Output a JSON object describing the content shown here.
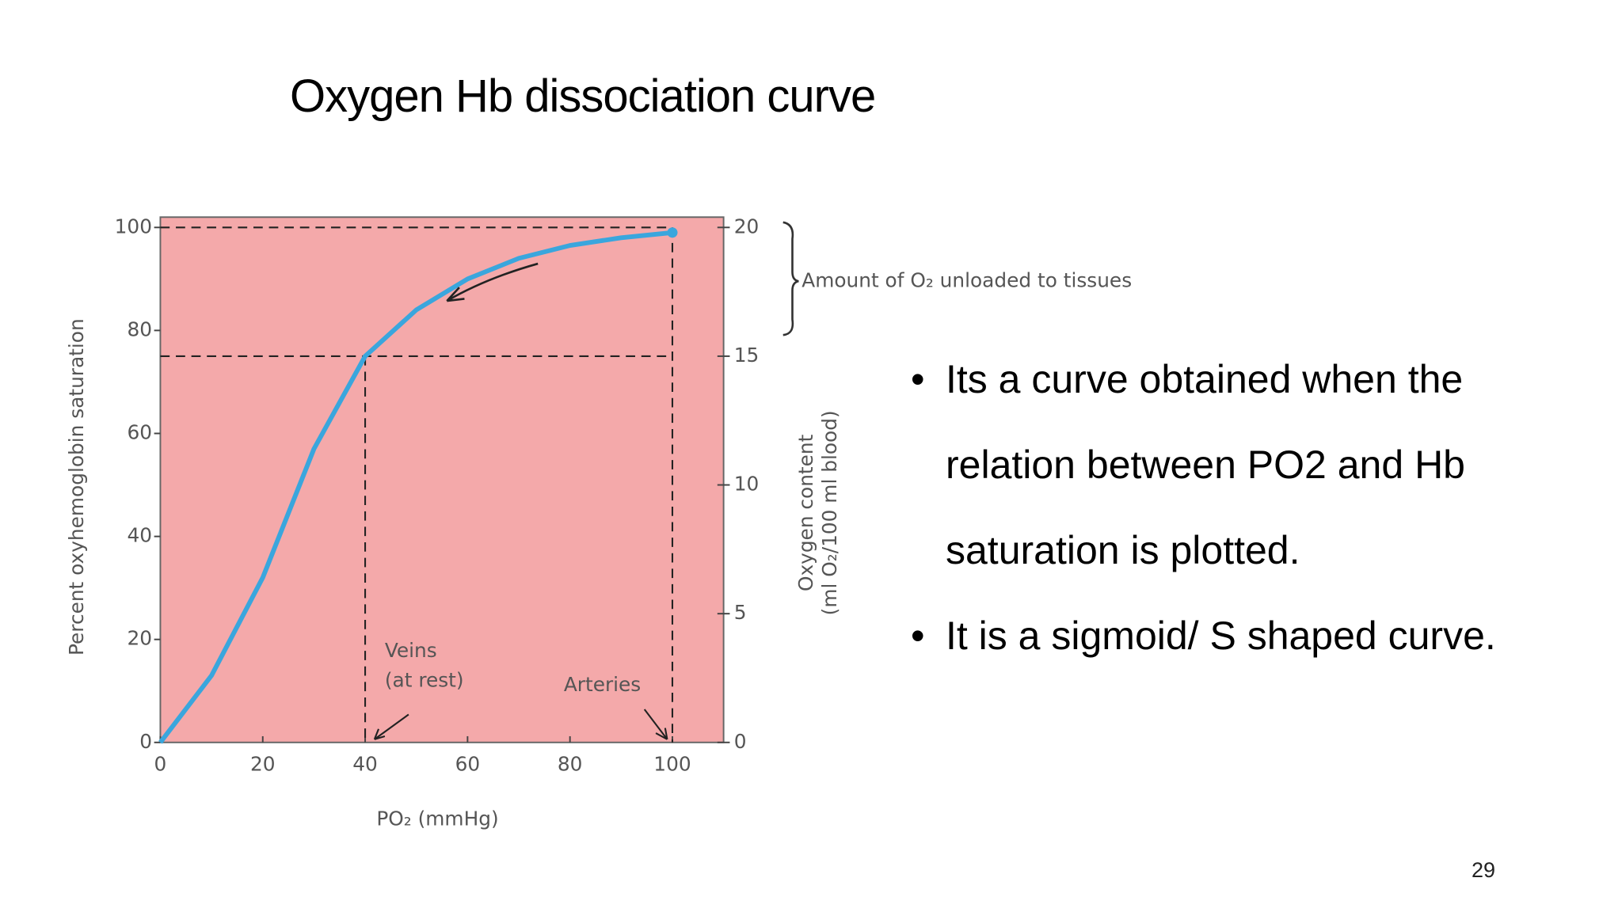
{
  "slide_title": "Oxygen Hb dissociation curve",
  "bullets": [
    "Its a curve obtained when the relation between PO2 and Hb saturation is plotted.",
    "It is a sigmoid/ S shaped curve."
  ],
  "page_number": "29",
  "chart_data": {
    "type": "line",
    "ylabel": "Percent oxyhemoglobin saturation",
    "y2label": [
      "Oxygen content",
      "(ml O₂/100 ml blood)"
    ],
    "xlabel": "PO₂ (mmHg)",
    "x": [
      0,
      10,
      20,
      30,
      40,
      50,
      60,
      70,
      80,
      90,
      100
    ],
    "series": [
      {
        "name": "Hb saturation",
        "color": "#3aa6dd",
        "values": [
          0,
          13,
          32,
          57,
          75,
          84,
          90,
          94,
          96.5,
          98,
          99
        ]
      }
    ],
    "xlim": [
      0,
      110
    ],
    "xticks": [
      0,
      20,
      40,
      60,
      80,
      100
    ],
    "ylim": [
      0,
      102
    ],
    "yticks": [
      0,
      20,
      40,
      60,
      80,
      100
    ],
    "y2lim": [
      0,
      20.4
    ],
    "y2ticks": [
      0,
      5,
      10,
      15,
      20
    ],
    "reference_points": [
      [
        40,
        75
      ],
      [
        100,
        100
      ]
    ],
    "annotations": [
      [
        "Veins",
        "(at rest)"
      ],
      [
        "Arteries"
      ],
      [
        "Amount of O₂ unloaded to tissues"
      ]
    ],
    "background": "#f4a9aa"
  }
}
